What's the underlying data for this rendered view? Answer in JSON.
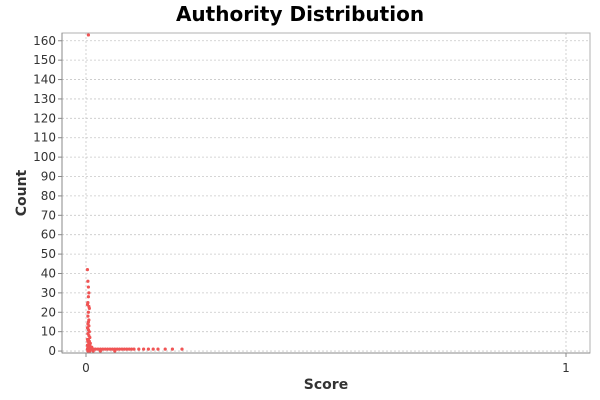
{
  "chart_data": {
    "type": "scatter",
    "title": "Authority Distribution",
    "xlabel": "Score",
    "ylabel": "Count",
    "xlim": [
      -0.05,
      1.05
    ],
    "ylim": [
      -1,
      164
    ],
    "xticks": [
      0,
      1
    ],
    "yticks": [
      0,
      10,
      20,
      30,
      40,
      50,
      60,
      70,
      80,
      90,
      100,
      110,
      120,
      130,
      140,
      150,
      160
    ],
    "grid": true,
    "legend": "none",
    "series": [
      {
        "color": "#f05454",
        "points": [
          [
            0.005,
            163
          ],
          [
            0.003,
            42
          ],
          [
            0.004,
            36
          ],
          [
            0.005,
            33
          ],
          [
            0.006,
            30
          ],
          [
            0.005,
            28
          ],
          [
            0.004,
            25
          ],
          [
            0.003,
            24
          ],
          [
            0.006,
            23
          ],
          [
            0.007,
            22
          ],
          [
            0.005,
            20
          ],
          [
            0.004,
            18
          ],
          [
            0.006,
            16
          ],
          [
            0.005,
            15
          ],
          [
            0.004,
            14
          ],
          [
            0.006,
            13
          ],
          [
            0.003,
            12
          ],
          [
            0.005,
            11
          ],
          [
            0.007,
            10
          ],
          [
            0.004,
            9
          ],
          [
            0.006,
            8
          ],
          [
            0.008,
            7
          ],
          [
            0.003,
            6
          ],
          [
            0.005,
            6
          ],
          [
            0.007,
            5
          ],
          [
            0.004,
            5
          ],
          [
            0.006,
            4
          ],
          [
            0.009,
            4
          ],
          [
            0.003,
            3
          ],
          [
            0.005,
            3
          ],
          [
            0.008,
            3
          ],
          [
            0.004,
            2
          ],
          [
            0.007,
            2
          ],
          [
            0.01,
            2
          ],
          [
            0.012,
            2
          ],
          [
            0.003,
            1
          ],
          [
            0.006,
            1
          ],
          [
            0.009,
            1
          ],
          [
            0.012,
            1
          ],
          [
            0.016,
            1
          ],
          [
            0.02,
            1
          ],
          [
            0.025,
            1
          ],
          [
            0.03,
            1
          ],
          [
            0.035,
            1
          ],
          [
            0.04,
            1
          ],
          [
            0.045,
            1
          ],
          [
            0.05,
            1
          ],
          [
            0.055,
            1
          ],
          [
            0.06,
            1
          ],
          [
            0.065,
            1
          ],
          [
            0.07,
            1
          ],
          [
            0.075,
            1
          ],
          [
            0.08,
            1
          ],
          [
            0.085,
            1
          ],
          [
            0.09,
            1
          ],
          [
            0.095,
            1
          ],
          [
            0.1,
            1
          ],
          [
            0.11,
            1
          ],
          [
            0.12,
            1
          ],
          [
            0.13,
            1
          ],
          [
            0.14,
            1
          ],
          [
            0.15,
            1
          ],
          [
            0.165,
            1
          ],
          [
            0.18,
            1
          ],
          [
            0.2,
            1
          ],
          [
            0.004,
            0
          ],
          [
            0.008,
            0
          ],
          [
            0.015,
            0
          ],
          [
            0.03,
            0
          ],
          [
            0.06,
            0
          ]
        ]
      }
    ]
  }
}
